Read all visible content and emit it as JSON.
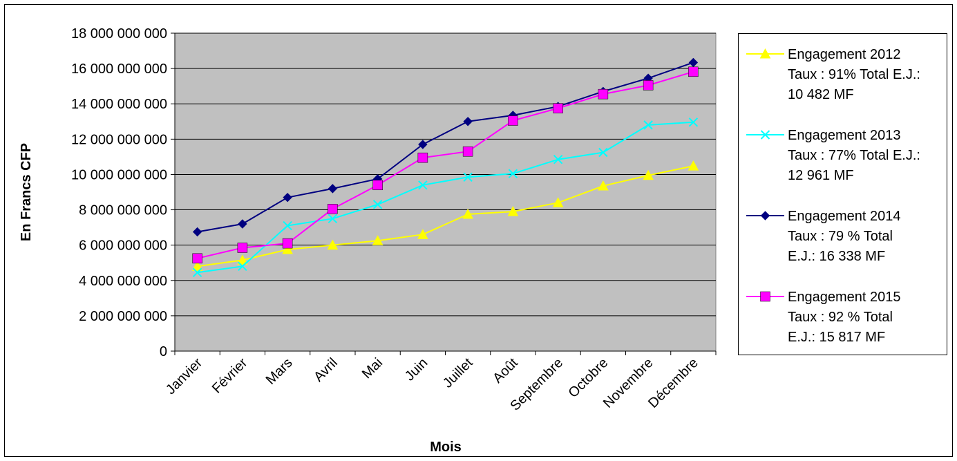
{
  "chart_data": {
    "type": "line",
    "title": "",
    "xlabel": "Mois",
    "ylabel": "En Francs CFP",
    "ylim": [
      0,
      18000000000
    ],
    "yticks": [
      0,
      2000000000,
      4000000000,
      6000000000,
      8000000000,
      10000000000,
      12000000000,
      14000000000,
      16000000000,
      18000000000
    ],
    "ytick_labels": [
      "0",
      "2 000 000 000",
      "4 000 000 000",
      "6 000 000 000",
      "8 000 000 000",
      "10 000 000 000",
      "12 000 000 000",
      "14 000 000 000",
      "16 000 000 000",
      "18 000 000 000"
    ],
    "categories": [
      "Janvier",
      "Février",
      "Mars",
      "Avril",
      "Mai",
      "Juin",
      "Juillet",
      "Août",
      "Septembre",
      "Octobre",
      "Novembre",
      "Décembre"
    ],
    "grid": true,
    "legend_position": "right",
    "series": [
      {
        "name_lines": [
          "Engagement 2012",
          "Taux : 91% Total E.J.:",
          "10 482 MF"
        ],
        "color": "#FFFF00",
        "marker": "triangle",
        "values": [
          4800000000,
          5150000000,
          5750000000,
          6000000000,
          6250000000,
          6600000000,
          7750000000,
          7900000000,
          8400000000,
          9350000000,
          9950000000,
          10482000000
        ]
      },
      {
        "name_lines": [
          "Engagement 2013",
          "Taux : 77% Total E.J.:",
          "12 961 MF"
        ],
        "color": "#00FFFF",
        "marker": "x",
        "values": [
          4450000000,
          4800000000,
          7100000000,
          7500000000,
          8300000000,
          9400000000,
          9850000000,
          10050000000,
          10850000000,
          11250000000,
          12800000000,
          12961000000
        ]
      },
      {
        "name_lines": [
          "Engagement 2014",
          "Taux : 79 % Total",
          "E.J.:  16 338 MF"
        ],
        "color": "#000080",
        "marker": "diamond",
        "values": [
          6750000000,
          7200000000,
          8700000000,
          9200000000,
          9750000000,
          11700000000,
          13000000000,
          13350000000,
          13850000000,
          14700000000,
          15450000000,
          16338000000
        ]
      },
      {
        "name_lines": [
          "Engagement 2015",
          "Taux : 92 % Total",
          "E.J.: 15 817 MF"
        ],
        "color": "#FF00FF",
        "marker": "square",
        "values": [
          5250000000,
          5850000000,
          6100000000,
          8050000000,
          9400000000,
          10950000000,
          11300000000,
          13050000000,
          13750000000,
          14550000000,
          15050000000,
          15817000000
        ]
      }
    ]
  }
}
